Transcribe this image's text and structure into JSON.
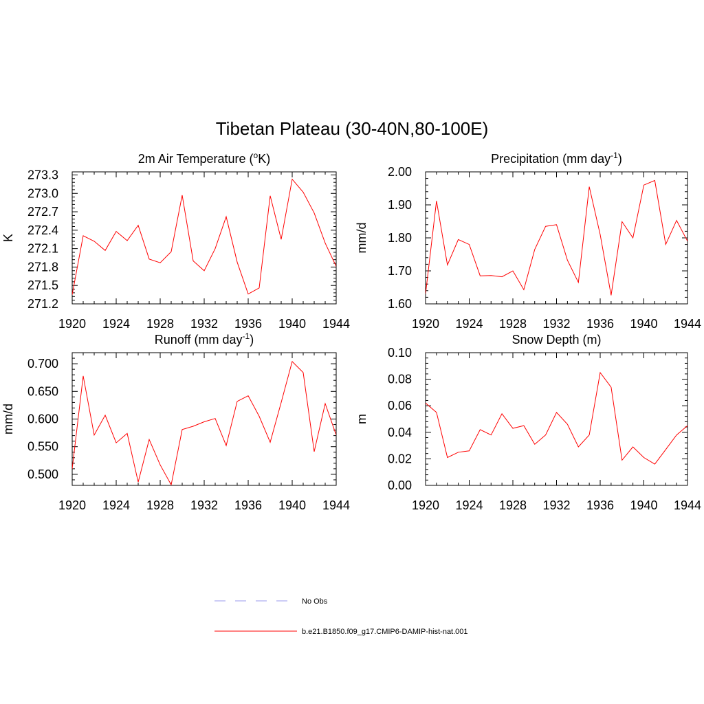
{
  "main_title": "Tibetan Plateau (30-40N,80-100E)",
  "chart_data": [
    {
      "type": "line",
      "title": "2m Air Temperature (",
      "title_sup": "o",
      "title_tail": "K)",
      "ylabel": "K",
      "xlim": [
        1920,
        1944
      ],
      "ylim": [
        271.2,
        273.35
      ],
      "xticks": [
        "1920",
        "1924",
        "1928",
        "1932",
        "1936",
        "1940",
        "1944"
      ],
      "yticks": [
        "271.2",
        "271.5",
        "271.8",
        "272.1",
        "272.4",
        "272.7",
        "273.0",
        "273.3"
      ],
      "series": [
        {
          "color": "#ff0000",
          "x": [
            1920,
            1921,
            1922,
            1923,
            1924,
            1925,
            1926,
            1927,
            1928,
            1929,
            1930,
            1931,
            1932,
            1933,
            1934,
            1935,
            1936,
            1937,
            1938,
            1939,
            1940,
            1941,
            1942,
            1943,
            1944
          ],
          "y": [
            271.35,
            272.31,
            272.22,
            272.07,
            272.38,
            272.23,
            272.48,
            271.93,
            271.87,
            272.05,
            272.97,
            271.9,
            271.74,
            272.1,
            272.62,
            271.88,
            271.36,
            271.46,
            272.96,
            272.25,
            273.23,
            273.02,
            272.68,
            272.19,
            271.81
          ]
        }
      ]
    },
    {
      "type": "line",
      "title": "Precipitation (mm day",
      "title_sup": "-1",
      "title_tail": ")",
      "ylabel": "mm/d",
      "xlim": [
        1920,
        1944
      ],
      "ylim": [
        1.6,
        2.0
      ],
      "xticks": [
        "1920",
        "1924",
        "1928",
        "1932",
        "1936",
        "1940",
        "1944"
      ],
      "yticks": [
        "1.60",
        "1.70",
        "1.80",
        "1.90",
        "2.00"
      ],
      "series": [
        {
          "color": "#ff0000",
          "x": [
            1920,
            1921,
            1922,
            1923,
            1924,
            1925,
            1926,
            1927,
            1928,
            1929,
            1930,
            1931,
            1932,
            1933,
            1934,
            1935,
            1936,
            1937,
            1938,
            1939,
            1940,
            1941,
            1942,
            1943,
            1944
          ],
          "y": [
            1.63,
            1.912,
            1.718,
            1.795,
            1.78,
            1.685,
            1.686,
            1.682,
            1.7,
            1.643,
            1.765,
            1.835,
            1.84,
            1.732,
            1.665,
            1.955,
            1.81,
            1.626,
            1.849,
            1.8,
            1.96,
            1.974,
            1.78,
            1.853,
            1.79
          ]
        }
      ]
    },
    {
      "type": "line",
      "title": "Runoff (mm day",
      "title_sup": "-1",
      "title_tail": ")",
      "ylabel": "mm/d",
      "xlim": [
        1920,
        1944
      ],
      "ylim": [
        0.48,
        0.72
      ],
      "xticks": [
        "1920",
        "1924",
        "1928",
        "1932",
        "1936",
        "1940",
        "1944"
      ],
      "yticks": [
        "0.500",
        "0.550",
        "0.600",
        "0.650",
        "0.700"
      ],
      "series": [
        {
          "color": "#ff0000",
          "x": [
            1920,
            1921,
            1922,
            1923,
            1924,
            1925,
            1926,
            1927,
            1928,
            1929,
            1930,
            1931,
            1932,
            1933,
            1934,
            1935,
            1936,
            1937,
            1938,
            1939,
            1940,
            1941,
            1942,
            1943,
            1944
          ],
          "y": [
            0.51,
            0.678,
            0.571,
            0.607,
            0.557,
            0.574,
            0.486,
            0.563,
            0.517,
            0.481,
            0.581,
            0.587,
            0.595,
            0.601,
            0.552,
            0.632,
            0.642,
            0.605,
            0.558,
            0.63,
            0.704,
            0.684,
            0.541,
            0.628,
            0.571
          ]
        }
      ]
    },
    {
      "type": "line",
      "title": "Snow Depth (m)",
      "title_sup": "",
      "title_tail": "",
      "ylabel": "m",
      "xlim": [
        1920,
        1944
      ],
      "ylim": [
        0.0,
        0.1
      ],
      "xticks": [
        "1920",
        "1924",
        "1928",
        "1932",
        "1936",
        "1940",
        "1944"
      ],
      "yticks": [
        "0.00",
        "0.02",
        "0.04",
        "0.06",
        "0.08",
        "0.10"
      ],
      "series": [
        {
          "color": "#ff0000",
          "x": [
            1920,
            1921,
            1922,
            1923,
            1924,
            1925,
            1926,
            1927,
            1928,
            1929,
            1930,
            1931,
            1932,
            1933,
            1934,
            1935,
            1936,
            1937,
            1938,
            1939,
            1940,
            1941,
            1942,
            1943,
            1944
          ],
          "y": [
            0.062,
            0.055,
            0.021,
            0.025,
            0.026,
            0.042,
            0.038,
            0.054,
            0.043,
            0.045,
            0.031,
            0.038,
            0.055,
            0.046,
            0.029,
            0.038,
            0.085,
            0.074,
            0.019,
            0.029,
            0.021,
            0.016,
            0.027,
            0.038,
            0.045
          ]
        }
      ]
    }
  ],
  "legend": [
    {
      "label": "No Obs",
      "color": "#9999ee",
      "style": "dashed"
    },
    {
      "label": "b.e21.B1850.f09_g17.CMIP6-DAMIP-hist-nat.001",
      "color": "#ff0000",
      "style": "solid"
    }
  ]
}
